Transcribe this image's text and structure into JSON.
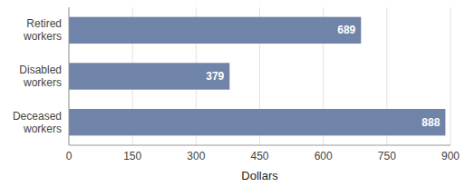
{
  "chart_data": {
    "type": "bar",
    "orientation": "horizontal",
    "categories": [
      "Deceased\nworkers",
      "Disabled\nworkers",
      "Retired\nworkers"
    ],
    "values": [
      888,
      379,
      689
    ],
    "color": "#7083a8",
    "xlabel": "Dollars",
    "xlim": [
      0,
      900
    ],
    "xticks": [
      0,
      150,
      300,
      450,
      600,
      750,
      900
    ],
    "grid": true,
    "data_labels": true
  }
}
